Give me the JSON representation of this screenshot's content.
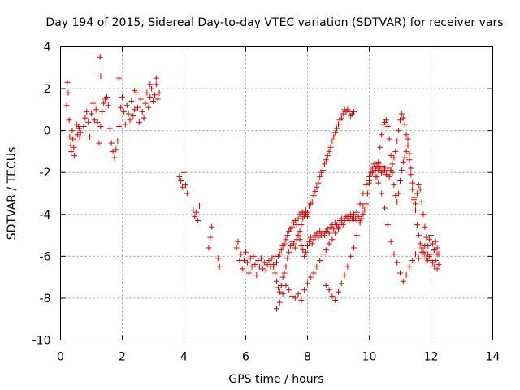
{
  "chart_data": {
    "type": "scatter",
    "title": "Day 194 of 2015, Sidereal Day-to-day VTEC variation (SDTVAR) for receiver vars",
    "xlabel": "GPS time / hours",
    "ylabel": "SDTVAR / TECUs",
    "xlim": [
      0,
      14
    ],
    "ylim": [
      -10,
      4
    ],
    "xticks": [
      0,
      2,
      4,
      6,
      8,
      10,
      12,
      14
    ],
    "yticks": [
      -10,
      -8,
      -6,
      -4,
      -2,
      0,
      2,
      4
    ],
    "xtick_labels": [
      "0",
      "2",
      "4",
      "6",
      "8",
      "10",
      "12",
      "14"
    ],
    "ytick_labels": [
      "-10",
      "-8",
      "-6",
      "-4",
      "-2",
      "0",
      "2",
      "4"
    ],
    "grid": true,
    "marker": "+",
    "series_color": "#dd0000",
    "series": [
      {
        "name": "vars",
        "x": [
          0.2,
          0.22,
          0.25,
          0.28,
          0.3,
          0.33,
          0.35,
          0.38,
          0.4,
          0.43,
          0.45,
          0.5,
          0.52,
          0.55,
          0.58,
          0.6,
          0.62,
          0.65,
          0.75,
          0.8,
          0.85,
          0.9,
          0.95,
          1.0,
          1.05,
          1.1,
          1.15,
          1.2,
          1.25,
          1.3,
          1.35,
          1.4,
          1.45,
          1.5,
          1.55,
          1.6,
          1.65,
          1.7,
          1.75,
          1.8,
          1.85,
          1.9,
          1.95,
          2.0,
          2.05,
          2.1,
          2.15,
          2.2,
          2.25,
          2.3,
          2.35,
          2.4,
          2.45,
          2.5,
          2.55,
          2.6,
          2.65,
          2.7,
          2.75,
          2.8,
          2.85,
          2.9,
          2.95,
          3.0,
          3.05,
          3.1,
          3.15,
          3.2,
          1.28,
          1.3,
          1.9,
          2.4,
          2.9,
          3.1,
          3.85,
          3.9,
          3.95,
          4.0,
          4.05,
          4.1,
          4.3,
          4.35,
          4.4,
          4.45,
          4.5,
          4.8,
          4.85,
          4.9,
          5.1,
          5.15,
          5.7,
          5.75,
          5.8,
          5.85,
          5.9,
          5.95,
          6.0,
          6.05,
          6.1,
          6.15,
          6.2,
          6.25,
          6.3,
          6.35,
          6.4,
          6.45,
          6.5,
          6.55,
          6.6,
          6.65,
          6.7,
          6.75,
          6.8,
          6.85,
          6.9,
          6.95,
          7.0,
          7.05,
          7.1,
          7.15,
          7.2,
          7.25,
          7.3,
          7.35,
          7.4,
          7.45,
          7.5,
          7.55,
          7.6,
          7.65,
          7.7,
          7.75,
          7.8,
          7.85,
          7.9,
          7.95,
          8.0,
          6.9,
          6.95,
          7.0,
          7.05,
          7.1,
          7.15,
          7.2,
          7.25,
          7.3,
          7.35,
          7.4,
          7.45,
          7.5,
          7.55,
          7.6,
          7.65,
          7.7,
          7.75,
          7.8,
          7.85,
          7.9,
          7.95,
          8.0,
          8.05,
          8.1,
          8.15,
          8.2,
          8.25,
          8.3,
          8.35,
          8.4,
          8.45,
          8.5,
          8.55,
          8.6,
          8.65,
          8.7,
          8.75,
          8.8,
          8.85,
          8.9,
          8.95,
          9.0,
          9.05,
          9.1,
          9.15,
          9.2,
          9.25,
          9.3,
          9.35,
          9.4,
          9.45,
          9.5,
          7.0,
          7.1,
          7.2,
          7.3,
          7.4,
          7.5,
          7.6,
          7.7,
          7.8,
          7.9,
          8.0,
          8.1,
          8.2,
          8.3,
          8.4,
          8.5,
          8.6,
          8.7,
          8.8,
          8.9,
          9.0,
          9.1,
          9.2,
          9.3,
          9.4,
          9.5,
          9.6,
          9.7,
          9.8,
          9.9,
          10.0,
          10.1,
          10.2,
          10.3,
          10.4,
          10.5,
          10.6,
          10.7,
          7.75,
          7.8,
          7.85,
          7.9,
          7.95,
          8.0,
          8.05,
          8.1,
          8.15,
          8.2,
          8.25,
          8.3,
          8.35,
          8.4,
          8.45,
          8.5,
          8.55,
          8.6,
          8.65,
          8.7,
          8.75,
          8.8,
          8.85,
          8.9,
          8.95,
          9.0,
          9.05,
          9.1,
          9.15,
          9.2,
          9.25,
          9.3,
          9.35,
          9.4,
          9.45,
          9.5,
          9.55,
          9.6,
          9.65,
          9.7,
          9.75,
          9.8,
          9.85,
          9.9,
          9.95,
          10.0,
          10.05,
          10.1,
          10.15,
          10.2,
          10.25,
          10.3,
          10.35,
          10.4,
          10.45,
          10.5,
          10.55,
          10.6,
          10.65,
          10.7,
          10.75,
          10.8,
          10.85,
          10.9,
          10.95,
          11.0,
          11.05,
          11.1,
          11.15,
          11.2,
          11.25,
          11.3,
          11.35,
          11.4,
          11.45,
          11.5,
          11.55,
          11.6,
          11.65,
          11.7,
          11.75,
          11.8,
          11.85,
          11.9,
          11.95,
          12.0,
          12.05,
          12.1,
          12.15,
          12.2,
          12.25,
          8.6,
          8.7,
          8.8,
          8.9,
          9.0,
          9.1,
          9.2,
          9.3,
          9.4,
          9.5,
          9.6,
          9.7,
          9.8,
          9.9,
          10.0,
          10.1,
          10.2,
          10.3,
          10.4,
          10.5,
          10.6,
          10.7,
          10.8,
          10.9,
          11.0,
          11.1,
          11.2,
          11.3,
          11.4,
          11.5,
          11.6,
          11.7,
          11.8,
          11.9,
          12.0,
          12.1,
          12.2,
          10.25,
          10.3,
          10.35,
          10.4,
          10.45,
          10.5,
          10.55,
          10.6,
          10.65,
          10.7,
          10.75,
          10.8,
          10.85,
          10.9,
          10.95,
          11.0,
          11.05,
          11.1,
          11.15,
          11.2,
          11.25,
          11.3,
          11.35,
          11.4,
          11.45,
          11.5,
          11.55,
          11.6,
          11.65,
          11.7,
          11.75,
          11.8,
          11.85,
          11.9,
          11.95,
          12.0,
          12.05,
          12.1,
          12.15,
          12.2,
          12.25
        ],
        "y": [
          1.2,
          2.3,
          1.8,
          0.5,
          -0.3,
          -0.7,
          -1.0,
          0.0,
          -0.4,
          -0.8,
          -1.2,
          -0.5,
          0.3,
          -0.2,
          0.2,
          0.1,
          -0.3,
          -0.1,
          0.2,
          0.6,
          0.9,
          0.4,
          -0.3,
          0.8,
          1.3,
          0.5,
          1.0,
          0.4,
          -0.6,
          0.2,
          0.9,
          1.3,
          1.5,
          1.6,
          1.2,
          0.1,
          -0.6,
          -1.0,
          -1.3,
          -0.9,
          -0.5,
          0.2,
          1.1,
          1.6,
          0.9,
          0.3,
          1.2,
          0.8,
          0.5,
          1.4,
          0.7,
          1.0,
          1.8,
          1.1,
          0.4,
          1.5,
          0.9,
          0.6,
          1.3,
          1.8,
          1.1,
          1.6,
          2.0,
          1.4,
          1.7,
          2.2,
          1.5,
          1.8,
          3.5,
          2.6,
          2.5,
          1.9,
          2.2,
          2.5,
          -2.2,
          -2.4,
          -2.7,
          -2.0,
          -2.6,
          -3.0,
          -3.8,
          -4.1,
          -3.9,
          -4.3,
          -3.6,
          -5.6,
          -5.1,
          -4.6,
          -6.1,
          -6.5,
          -5.6,
          -5.3,
          -6.2,
          -5.9,
          -6.6,
          -6.2,
          -5.8,
          -6.3,
          -6.8,
          -6.1,
          -6.5,
          -6.0,
          -6.4,
          -6.9,
          -6.2,
          -6.5,
          -6.1,
          -6.6,
          -6.3,
          -6.7,
          -6.4,
          -6.2,
          -6.5,
          -6.1,
          -6.4,
          -6.0,
          -6.3,
          -6.0,
          -5.9,
          -5.7,
          -5.5,
          -5.4,
          -5.2,
          -5.0,
          -4.8,
          -4.7,
          -4.6,
          -4.4,
          -4.3,
          -4.5,
          -4.2,
          -4.0,
          -3.9,
          -3.9,
          -4.1,
          -4.0,
          -4.1,
          -6.5,
          -6.8,
          -7.2,
          -7.5,
          -7.7,
          -7.4,
          -7.0,
          -6.8,
          -6.5,
          -6.1,
          -5.8,
          -5.5,
          -5.3,
          -5.4,
          -5.6,
          -5.2,
          -5.0,
          -4.8,
          -4.5,
          -4.2,
          -4.0,
          -3.8,
          -3.9,
          -3.6,
          -3.5,
          -3.4,
          -3.1,
          -2.9,
          -2.7,
          -2.5,
          -2.2,
          -2.0,
          -1.9,
          -1.6,
          -1.4,
          -1.2,
          -1.0,
          -0.8,
          -0.5,
          -0.3,
          -0.1,
          0.1,
          0.3,
          0.5,
          0.6,
          0.8,
          1.0,
          0.9,
          1.0,
          0.9,
          0.7,
          0.8,
          0.9,
          -8.5,
          -8.2,
          -7.8,
          -7.4,
          -7.6,
          -7.9,
          -8.0,
          -7.8,
          -8.1,
          -7.6,
          -7.3,
          -7.0,
          -6.8,
          -6.5,
          -6.2,
          -5.9,
          -5.7,
          -5.4,
          -5.2,
          -4.9,
          -4.7,
          -4.4,
          -4.2,
          -4.1,
          -4.0,
          -4.2,
          -3.9,
          -3.5,
          -3.0,
          -2.6,
          -2.2,
          -2.0,
          -1.8,
          -1.9,
          -2.0,
          -1.8,
          -2.1,
          -1.9,
          -5.2,
          -5.5,
          -5.7,
          -6.0,
          -5.8,
          -5.5,
          -5.3,
          -5.1,
          -5.4,
          -5.2,
          -5.0,
          -4.9,
          -5.1,
          -4.8,
          -5.0,
          -4.9,
          -5.0,
          -4.8,
          -4.7,
          -4.9,
          -4.6,
          -4.5,
          -4.7,
          -4.4,
          -4.5,
          -4.6,
          -4.3,
          -4.2,
          -4.5,
          -4.3,
          -4.1,
          -4.2,
          -4.3,
          -4.1,
          -4.2,
          -4.0,
          -4.2,
          -4.3,
          -4.1,
          -4.4,
          -4.2,
          -4.0,
          -3.8,
          -3.5,
          -3.0,
          -2.5,
          -2.0,
          -1.8,
          -1.6,
          -1.9,
          -1.7,
          -1.5,
          -1.8,
          -2.0,
          -1.7,
          -1.9,
          -2.1,
          -1.8,
          -2.2,
          -1.9,
          -1.6,
          -1.3,
          -1.0,
          -0.5,
          0.0,
          0.5,
          0.8,
          0.6,
          0.3,
          -0.2,
          -0.7,
          -1.4,
          -2.1,
          -2.8,
          -3.3,
          -3.8,
          -4.5,
          -5.0,
          -5.4,
          -5.6,
          -5.8,
          -5.9,
          -6.1,
          -6.2,
          -6.0,
          -5.9,
          -6.3,
          -6.5,
          -6.2,
          -6.6,
          -6.4,
          -7.4,
          -7.6,
          -7.9,
          -8.1,
          -7.7,
          -7.3,
          -6.9,
          -6.5,
          -6.0,
          -5.6,
          -5.0,
          -4.3,
          -3.6,
          -3.0,
          -2.4,
          -2.0,
          -2.2,
          -2.5,
          -3.0,
          -3.7,
          -4.5,
          -5.3,
          -5.9,
          -6.3,
          -6.8,
          -7.2,
          -6.9,
          -6.5,
          -6.2,
          -5.9,
          -6.1,
          -5.8,
          -5.5,
          -5.9,
          -6.2,
          -5.7,
          -5.9,
          -2.2,
          -1.6,
          -0.8,
          -0.2,
          0.3,
          0.4,
          0.5,
          0.2,
          -0.4,
          -1.2,
          -2.0,
          -2.6,
          -3.1,
          -3.4,
          -3.0,
          -2.4,
          -1.9,
          -1.5,
          -1.3,
          -1.0,
          -0.4,
          -1.1,
          -1.8,
          -2.5,
          -3.2,
          -3.5,
          -3.0,
          -2.6,
          -2.8,
          -3.4,
          -4.0,
          -4.6,
          -5.1,
          -5.5,
          -5.2,
          -5.0,
          -5.4,
          -5.7,
          -5.3,
          -5.6,
          -5.9
        ]
      }
    ]
  }
}
